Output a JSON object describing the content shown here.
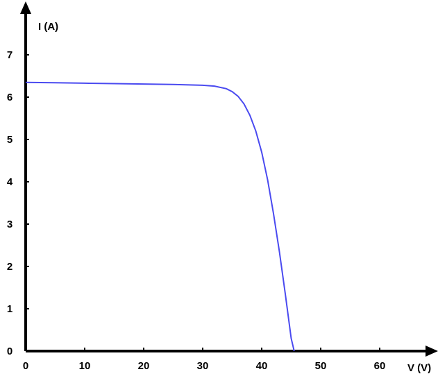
{
  "chart_data": {
    "type": "line",
    "xlabel": "V (V)",
    "ylabel": "I (A)",
    "xlim": [
      0,
      70
    ],
    "ylim": [
      0,
      7
    ],
    "x_ticks": [
      "0",
      "10",
      "20",
      "30",
      "40",
      "50",
      "60"
    ],
    "y_ticks": [
      "0",
      "1",
      "2",
      "3",
      "4",
      "5",
      "6",
      "7"
    ],
    "grid": false,
    "line_color": "#4a4af0",
    "axis_color": "#000000",
    "series": [
      {
        "x": [
          0,
          5,
          10,
          15,
          20,
          25,
          30,
          32,
          34,
          35,
          36,
          37,
          38,
          39,
          40,
          41,
          42,
          43,
          44,
          45,
          45.5
        ],
        "y": [
          6.35,
          6.34,
          6.33,
          6.32,
          6.31,
          6.3,
          6.28,
          6.26,
          6.2,
          6.13,
          6.02,
          5.84,
          5.57,
          5.2,
          4.7,
          4.05,
          3.25,
          2.35,
          1.35,
          0.3,
          0.0
        ]
      }
    ]
  }
}
